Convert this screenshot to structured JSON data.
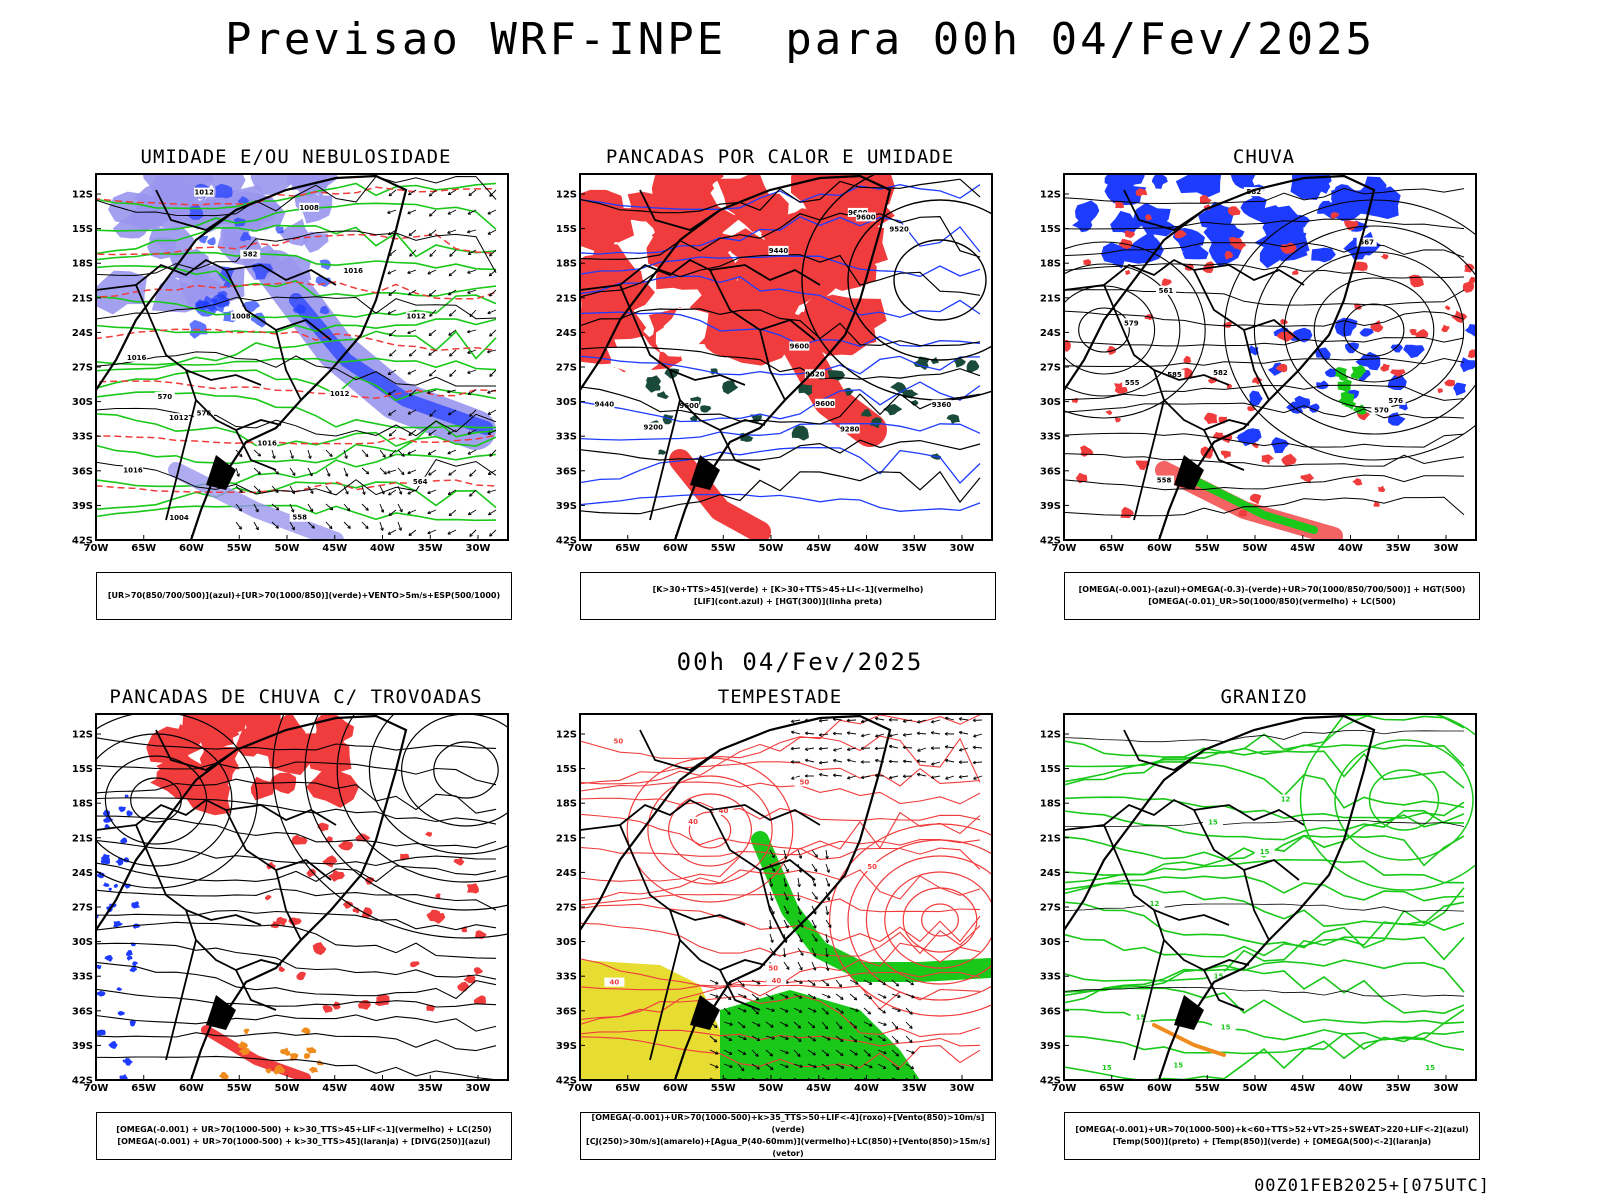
{
  "header": {
    "title": "Previsao WRF-INPE  para 00h 04/Fev/2025"
  },
  "middle": {
    "title": "00h 04/Fev/2025"
  },
  "footer": {
    "stamp": "00Z01FEB2025+[075UTC]"
  },
  "axes": {
    "lat_labels": [
      "12S",
      "15S",
      "18S",
      "21S",
      "24S",
      "27S",
      "30S",
      "33S",
      "36S",
      "39S",
      "42S"
    ],
    "lon_labels": [
      "70W",
      "65W",
      "60W",
      "55W",
      "50W",
      "45W",
      "40W",
      "35W",
      "30W"
    ]
  },
  "colors": {
    "red": "#f03c3c",
    "green": "#19c819",
    "blue": "#1e3cff",
    "purple": "#9a96ee",
    "yellow": "#e6dc32",
    "dark_green": "#1a4a3a",
    "orange": "#f08c1e"
  },
  "panels": [
    {
      "id": "umidade",
      "title": "UMIDADE E/OU NEBULOSIDADE",
      "legend": [
        "[UR>70(850/700/500)](azul)+[UR>70(1000/850)](verde)+VENTO>5m/s+ESP(500/1000)"
      ],
      "contour_labels": [
        "1012",
        "1012",
        "1016",
        "1008",
        "1012",
        "1016",
        "1004",
        "1008",
        "1012",
        "1016",
        "1016",
        "570",
        "576",
        "582",
        "564",
        "558"
      ]
    },
    {
      "id": "pancadas-calor",
      "title": "PANCADAS POR CALOR E UMIDADE",
      "legend": [
        "[K>30+TTS>45](verde) + [K>30+TTS>45+LI<-1](vermelho)",
        "[LIF](cont.azul) + [HGT(300)](linha preta)"
      ],
      "contour_labels": [
        "9600",
        "9600",
        "9600",
        "9600",
        "9600",
        "9520",
        "9440",
        "9360",
        "9280",
        "9200",
        "9440",
        "9520"
      ]
    },
    {
      "id": "chuva",
      "title": "CHUVA",
      "legend": [
        "[OMEGA(-0.001)-(azul)+OMEGA(-0.3)-(verde)+UR>70(1000/850/700/500)] + HGT(500)",
        "[OMEGA(-0.01)_UR>50(1000/850)(vermelho) + LC(500)"
      ],
      "contour_labels": [
        "585",
        "582",
        "582",
        "576",
        "570",
        "579",
        "567",
        "561",
        "558",
        "555"
      ]
    },
    {
      "id": "pancadas-trovoadas",
      "title": "PANCADAS DE CHUVA C/ TROVOADAS",
      "legend": [
        "[OMEGA(-0.001) + UR>70(1000-500) + k>30_TTS>45+LIF<-1](vermelho) + LC(250)",
        "[OMEGA(-0.001) + UR>70(1000-500) + k>30_TTS>45](laranja) + [DIVG(250)](azul)"
      ],
      "contour_labels": []
    },
    {
      "id": "tempestade",
      "title": "TEMPESTADE",
      "legend": [
        "[OMEGA(-0.001)+UR>70(1000-500)+k>35_TTS>50+LIF<-4](roxo)+[Vento(850)>10m/s](verde)",
        "[CJ(250)>30m/s](amarelo)+[Agua_P(40-60mm)](vermelho)+LC(850)+[Vento(850)>15m/s](vetor)"
      ],
      "contour_labels": [
        "40",
        "50",
        "40",
        "50",
        "40",
        "50",
        "40",
        "50"
      ]
    },
    {
      "id": "granizo",
      "title": "GRANIZO",
      "legend": [
        "[OMEGA(-0.001)+UR>70(1000-500)+k<60+TTS>52+VT>25+SWEAT>220+LIF<-2](azul)",
        "[Temp(500)](preto) + [Temp(850)](verde) + [OMEGA(500)<-2](laranja)"
      ],
      "contour_labels": [
        "15",
        "15",
        "15",
        "15",
        "12",
        "15",
        "15",
        "15",
        "15",
        "12",
        "15"
      ]
    }
  ]
}
